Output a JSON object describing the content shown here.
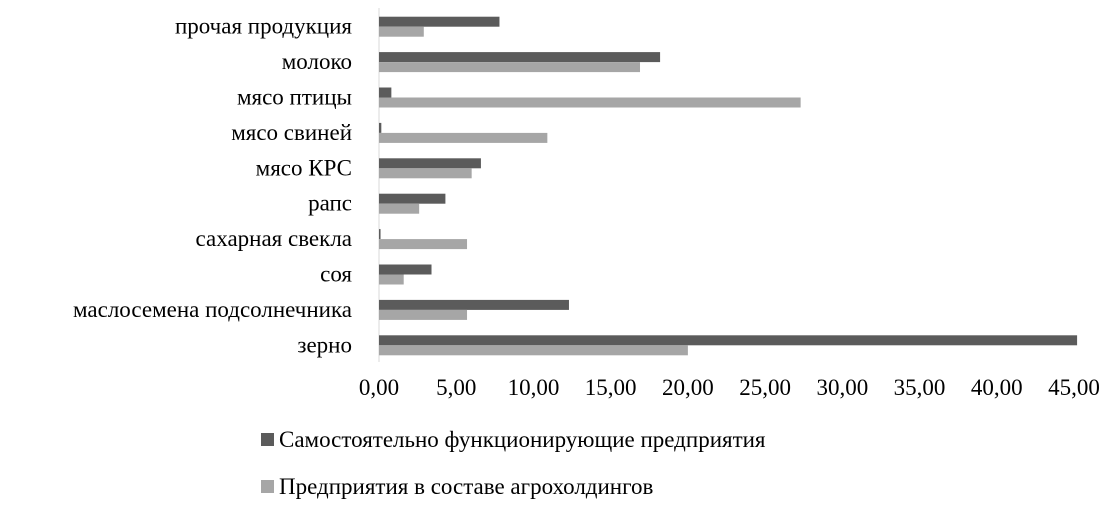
{
  "chart_data": {
    "type": "bar",
    "orientation": "horizontal",
    "title": "",
    "xlabel": "",
    "ylabel": "",
    "categories": [
      "прочая продукция",
      "молоко",
      "мясо птицы",
      "мясо свиней",
      "мясо КРС",
      "рапс",
      "сахарная свекла",
      "соя",
      "маслосемена подсолнечника",
      "зерно"
    ],
    "series": [
      {
        "name": "Самостоятельно функционирующие предприятия",
        "color": "#5b5b5b",
        "values": [
          7.8,
          18.2,
          0.8,
          0.15,
          6.6,
          4.3,
          0.1,
          3.4,
          12.3,
          45.2
        ]
      },
      {
        "name": "Предприятия в составе агрохолдингов",
        "color": "#a6a6a6",
        "values": [
          2.9,
          16.9,
          27.3,
          10.9,
          6.0,
          2.6,
          5.7,
          1.6,
          5.7,
          20.0
        ]
      }
    ],
    "xlim": [
      0,
      45
    ],
    "xticks": [
      "0,00",
      "5,00",
      "10,00",
      "15,00",
      "20,00",
      "25,00",
      "30,00",
      "35,00",
      "40,00",
      "45,00"
    ],
    "grid": false,
    "legend_position": "bottom"
  }
}
